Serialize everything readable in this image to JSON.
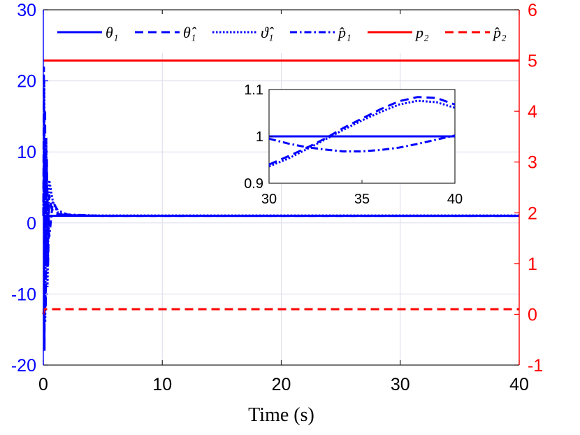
{
  "chart_data": [
    {
      "type": "line",
      "title": "",
      "xlabel": "Time (s)",
      "ylabel_left": "",
      "ylabel_right": "",
      "xlim": [
        0,
        40
      ],
      "ylim_left": [
        -20,
        30
      ],
      "ylim_right": [
        -1,
        6
      ],
      "xticks": [
        "0",
        "10",
        "20",
        "30",
        "40"
      ],
      "yticks_left": [
        "-20",
        "-10",
        "0",
        "10",
        "20",
        "30"
      ],
      "yticks_right": [
        "-1",
        "0",
        "1",
        "2",
        "3",
        "4",
        "5",
        "6"
      ],
      "grid": true,
      "legend_position": "top",
      "colors": {
        "left_axis": "#0000ff",
        "right_axis": "#ff0000",
        "axis": "#000000"
      },
      "series": [
        {
          "name": "θ₁",
          "axis": "left",
          "color": "#0000ff",
          "style": "solid",
          "x": [
            0,
            40
          ],
          "y": [
            1,
            1
          ]
        },
        {
          "name": "θ̂₁",
          "axis": "left",
          "color": "#0000ff",
          "style": "dashed",
          "x": [
            0,
            0.05,
            0.1,
            0.15,
            0.2,
            0.3,
            0.4,
            0.5,
            0.7,
            1.0,
            2,
            5,
            10,
            20,
            30,
            40
          ],
          "y": [
            1,
            22,
            -18,
            16,
            -12,
            9,
            -6,
            4,
            2,
            1.3,
            1.1,
            1.0,
            1.0,
            1.0,
            1.0,
            1.0
          ]
        },
        {
          "name": "ϑ̂₁",
          "axis": "left",
          "color": "#0000ff",
          "style": "dotted",
          "x": [
            0,
            0.08,
            0.16,
            0.25,
            0.35,
            0.5,
            0.8,
            1.2,
            2,
            5,
            10,
            20,
            30,
            40
          ],
          "y": [
            1,
            20,
            -14,
            12,
            -9,
            6,
            3,
            1.5,
            1.1,
            1.05,
            1.05,
            1.05,
            1.05,
            1.05
          ]
        },
        {
          "name": "p̂₁",
          "axis": "left",
          "color": "#0000ff",
          "style": "dashdot",
          "x": [
            0,
            0.1,
            0.2,
            0.3,
            0.5,
            0.8,
            1.2,
            2,
            5,
            10,
            20,
            30,
            40
          ],
          "y": [
            1,
            10,
            -5,
            6,
            -2,
            3,
            1.8,
            1.2,
            1.0,
            1.0,
            1.0,
            1.0,
            1.0
          ]
        },
        {
          "name": "p₂",
          "axis": "right",
          "color": "#ff0000",
          "style": "solid",
          "x": [
            0,
            40
          ],
          "y": [
            5,
            5
          ]
        },
        {
          "name": "p̂₂",
          "axis": "right",
          "color": "#ff0000",
          "style": "dashed",
          "x": [
            0,
            0.05,
            0.2,
            40
          ],
          "y": [
            0,
            0.1,
            0.1,
            0.1
          ]
        }
      ]
    },
    {
      "type": "line",
      "title": "",
      "inset": true,
      "xlim": [
        30,
        40
      ],
      "ylim": [
        0.9,
        1.1
      ],
      "xticks": [
        "30",
        "35",
        "40"
      ],
      "yticks": [
        "0.9",
        "1",
        "1.1"
      ],
      "series": [
        {
          "name": "θ₁",
          "color": "#0000ff",
          "style": "solid",
          "x": [
            30,
            40
          ],
          "y": [
            1.0,
            1.0
          ]
        },
        {
          "name": "θ̂₁",
          "color": "#0000ff",
          "style": "dashed",
          "x": [
            30,
            31,
            32,
            33,
            34,
            35,
            36,
            37,
            38,
            39,
            40
          ],
          "y": [
            0.94,
            0.957,
            0.975,
            0.995,
            1.018,
            1.038,
            1.058,
            1.075,
            1.084,
            1.082,
            1.068
          ]
        },
        {
          "name": "ϑ̂₁",
          "color": "#0000ff",
          "style": "dotted",
          "x": [
            30,
            31,
            32,
            33,
            34,
            35,
            36,
            37,
            38,
            39,
            40
          ],
          "y": [
            0.936,
            0.952,
            0.972,
            0.993,
            1.014,
            1.034,
            1.052,
            1.068,
            1.076,
            1.073,
            1.061
          ]
        },
        {
          "name": "p̂₁",
          "color": "#0000ff",
          "style": "dashdot",
          "x": [
            30,
            31,
            32,
            33,
            34,
            35,
            36,
            37,
            38,
            39,
            40
          ],
          "y": [
            0.995,
            0.985,
            0.977,
            0.972,
            0.968,
            0.968,
            0.971,
            0.976,
            0.984,
            0.993,
            1.002
          ]
        }
      ]
    }
  ]
}
